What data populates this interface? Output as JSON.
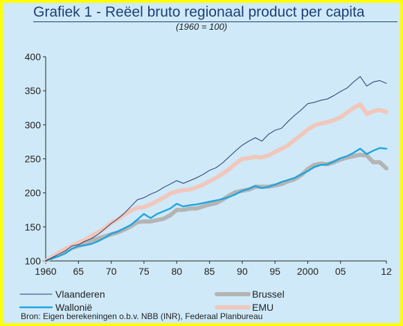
{
  "title": "Grafiek 1 - Reëel bruto regionaal product per capita",
  "subtitle": "(1960 = 100)",
  "source": "Bron: Eigen berekeningen o.b.v. NBB (INR), Federaal Planbureau",
  "colors": {
    "background": "#ffff00",
    "plot_background": "#cfe9f8",
    "title": "#1f3f74",
    "vlaanderen": "#1f3a6b",
    "wallonie": "#1ea3e0",
    "brussel": "#b4b4b4",
    "emu": "#f1c7bb"
  },
  "chart_data": {
    "type": "line",
    "x_tick_labels": [
      "1960",
      "65",
      "70",
      "75",
      "80",
      "85",
      "90",
      "95",
      "2000",
      "05",
      "12"
    ],
    "x_ticks": [
      1960,
      1965,
      1970,
      1975,
      1980,
      1985,
      1990,
      1995,
      2000,
      2005,
      2012
    ],
    "xlim": [
      1960,
      2012
    ],
    "ylim": [
      100,
      400
    ],
    "y_ticks": [
      100,
      150,
      200,
      250,
      300,
      350,
      400
    ],
    "grid": false,
    "legend_placement": "bottom",
    "x": [
      1960,
      1961,
      1962,
      1963,
      1964,
      1965,
      1966,
      1967,
      1968,
      1969,
      1970,
      1971,
      1972,
      1973,
      1974,
      1975,
      1976,
      1977,
      1978,
      1979,
      1980,
      1981,
      1982,
      1983,
      1984,
      1985,
      1986,
      1987,
      1988,
      1989,
      1990,
      1991,
      1992,
      1993,
      1994,
      1995,
      1996,
      1997,
      1998,
      1999,
      2000,
      2001,
      2002,
      2003,
      2004,
      2005,
      2006,
      2007,
      2008,
      2009,
      2010,
      2011,
      2012
    ],
    "series": [
      {
        "name": "Vlaanderen",
        "color": "#1f3a6b",
        "style": "thin",
        "values": [
          100,
          105,
          110,
          115,
          122,
          124,
          129,
          133,
          139,
          147,
          155,
          162,
          170,
          180,
          190,
          193,
          198,
          202,
          208,
          213,
          218,
          214,
          218,
          222,
          227,
          233,
          237,
          244,
          253,
          262,
          270,
          276,
          281,
          276,
          286,
          292,
          295,
          305,
          314,
          322,
          331,
          333,
          336,
          338,
          343,
          349,
          354,
          363,
          371,
          357,
          363,
          365,
          361
        ]
      },
      {
        "name": "Wallonië",
        "color": "#1ea3e0",
        "style": "medium",
        "values": [
          100,
          104,
          107,
          111,
          118,
          122,
          123,
          125,
          129,
          134,
          140,
          143,
          148,
          153,
          161,
          169,
          163,
          169,
          173,
          177,
          184,
          180,
          182,
          183,
          185,
          187,
          189,
          191,
          194,
          198,
          203,
          206,
          210,
          207,
          209,
          212,
          216,
          219,
          222,
          227,
          232,
          238,
          241,
          242,
          246,
          251,
          254,
          259,
          265,
          257,
          262,
          266,
          265
        ]
      },
      {
        "name": "Brussel",
        "color": "#b4b4b4",
        "style": "thick",
        "values": [
          100,
          105,
          109,
          114,
          119,
          122,
          125,
          130,
          133,
          136,
          139,
          142,
          146,
          151,
          157,
          158,
          158,
          160,
          162,
          167,
          175,
          175,
          177,
          177,
          180,
          183,
          185,
          190,
          196,
          201,
          203,
          205,
          209,
          209,
          209,
          211,
          213,
          217,
          220,
          226,
          235,
          241,
          243,
          242,
          245,
          249,
          252,
          254,
          256,
          255,
          245,
          245,
          236
        ]
      },
      {
        "name": "EMU",
        "color": "#f1c7bb",
        "style": "thick",
        "values": [
          100,
          106,
          112,
          118,
          122,
          127,
          131,
          137,
          142,
          148,
          156,
          161,
          168,
          174,
          178,
          179,
          183,
          188,
          193,
          199,
          202,
          204,
          205,
          208,
          212,
          217,
          222,
          228,
          235,
          243,
          250,
          251,
          253,
          252,
          255,
          260,
          265,
          270,
          278,
          285,
          293,
          299,
          302,
          304,
          307,
          311,
          318,
          325,
          330,
          316,
          320,
          322,
          319
        ]
      }
    ]
  }
}
